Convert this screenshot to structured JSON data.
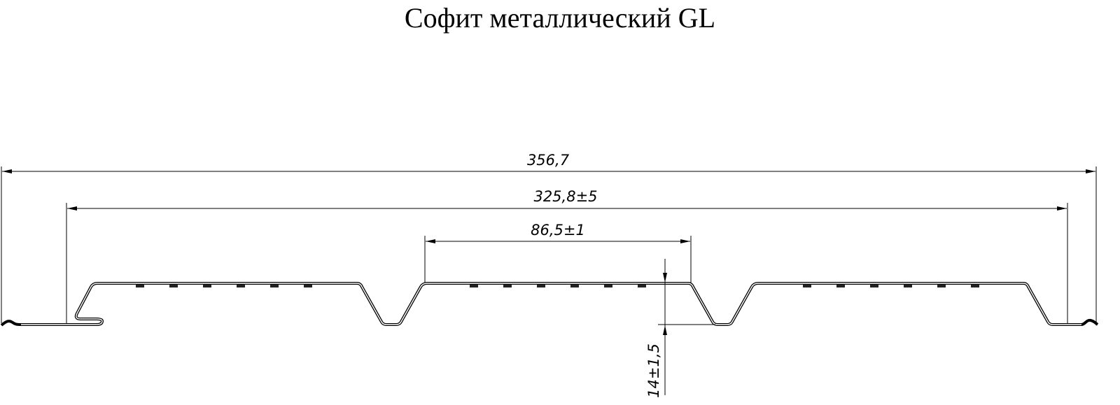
{
  "title": "Софит металлический GL",
  "dimensions": {
    "overall_width": "356,7",
    "effective_width": "325,8±5",
    "rib_pitch": "86,5±1",
    "profile_height": "14±1,5"
  },
  "colors": {
    "line": "#000000",
    "background": "#ffffff"
  }
}
